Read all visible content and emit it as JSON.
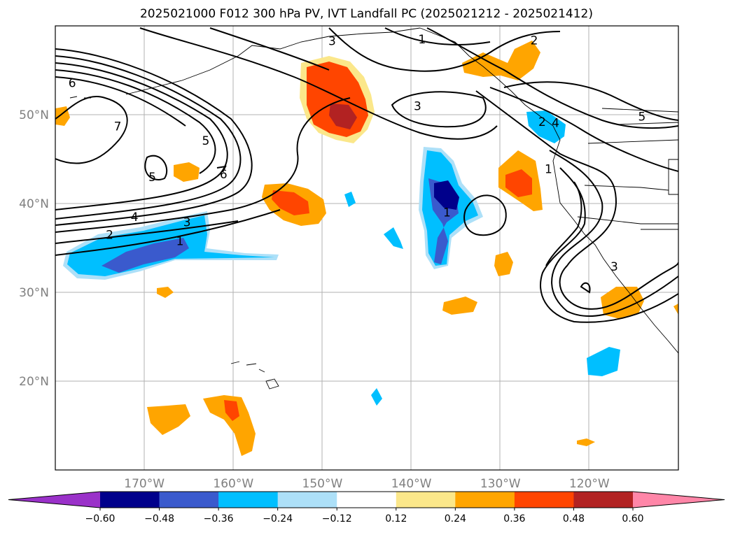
{
  "title": "2025021000 F012 300 hPa PV, IVT Landfall PC (2025021212 - 2025021412)",
  "axes": {
    "lon_range": [
      -180,
      -110
    ],
    "lat_range": [
      10,
      60
    ],
    "lat_ticks": [
      {
        "value": 50,
        "label": "50°N"
      },
      {
        "value": 40,
        "label": "40°N"
      },
      {
        "value": 30,
        "label": "30°N"
      },
      {
        "value": 20,
        "label": "20°N"
      }
    ],
    "lon_ticks": [
      {
        "value": -170,
        "label": "170°W"
      },
      {
        "value": -160,
        "label": "160°W"
      },
      {
        "value": -150,
        "label": "150°W"
      },
      {
        "value": -140,
        "label": "140°W"
      },
      {
        "value": -130,
        "label": "130°W"
      },
      {
        "value": -120,
        "label": "120°W"
      }
    ],
    "grid": true
  },
  "colorbar": {
    "boundaries": [
      "−0.60",
      "−0.48",
      "−0.36",
      "−0.24",
      "−0.12",
      "0.12",
      "0.24",
      "0.36",
      "0.48",
      "0.60"
    ],
    "colors": [
      "#9a31c9",
      "#00008b",
      "#3a5acd",
      "#00bfff",
      "#ade0f8",
      "#ffffff",
      "#fbe78a",
      "#ffa500",
      "#ff4500",
      "#b22222",
      "#ff86a8"
    ],
    "extend": "both"
  },
  "contour_labels": [
    {
      "text": "6",
      "lon": -178.1,
      "lat": 53.6
    },
    {
      "text": "7",
      "lon": -173.0,
      "lat": 48.7
    },
    {
      "text": "5",
      "lon": -163.1,
      "lat": 47.1
    },
    {
      "text": "5",
      "lon": -169.1,
      "lat": 43.0
    },
    {
      "text": "6",
      "lon": -161.1,
      "lat": 43.3
    },
    {
      "text": "4",
      "lon": -171.1,
      "lat": 38.5
    },
    {
      "text": "3",
      "lon": -165.2,
      "lat": 37.9
    },
    {
      "text": "2",
      "lon": -173.9,
      "lat": 36.5
    },
    {
      "text": "1",
      "lon": -166.0,
      "lat": 35.8
    },
    {
      "text": "3",
      "lon": -148.9,
      "lat": 58.3
    },
    {
      "text": "3",
      "lon": -139.3,
      "lat": 51.0
    },
    {
      "text": "1",
      "lon": -138.8,
      "lat": 58.5
    },
    {
      "text": "2",
      "lon": -126.2,
      "lat": 58.4
    },
    {
      "text": "2",
      "lon": -125.3,
      "lat": 49.2
    },
    {
      "text": "4",
      "lon": -123.8,
      "lat": 49.1
    },
    {
      "text": "5",
      "lon": -114.1,
      "lat": 49.8
    },
    {
      "text": "1",
      "lon": -124.6,
      "lat": 43.9
    },
    {
      "text": "1",
      "lon": -136.0,
      "lat": 39.0
    },
    {
      "text": "3",
      "lon": -117.2,
      "lat": 32.9
    }
  ]
}
